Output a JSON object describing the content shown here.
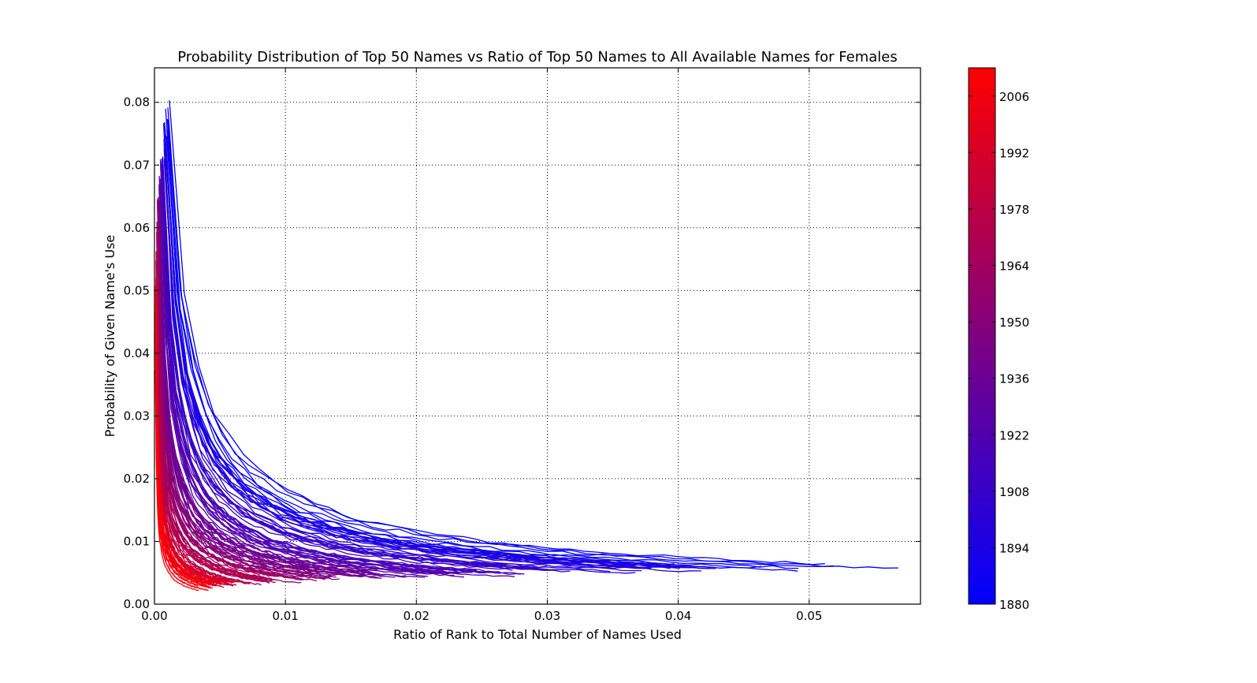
{
  "chart_data": {
    "type": "line",
    "title": "Probability Distribution of Top 50 Names vs Ratio of Top 50 Names to All Available Names for Females",
    "xlabel": "Ratio of Rank to Total Number of Names Used",
    "ylabel": "Probability of Given Name's Use",
    "xlim": [
      0,
      0.0585
    ],
    "ylim": [
      0,
      0.0855
    ],
    "x_ticks": [
      "0.00",
      "0.01",
      "0.02",
      "0.03",
      "0.04",
      "0.05"
    ],
    "y_ticks": [
      "0.00",
      "0.01",
      "0.02",
      "0.03",
      "0.04",
      "0.05",
      "0.06",
      "0.07",
      "0.08"
    ],
    "grid": true,
    "grid_style": "dotted",
    "series_description": {
      "year_start": 1880,
      "year_end": 2013,
      "points_per_series": 50,
      "first_year_max_x": 0.0532,
      "last_year_max_x": 0.0027,
      "first_year_end_y": 0.006,
      "last_year_end_y": 0.0028,
      "peak_y_range": [
        0.032,
        0.078
      ]
    },
    "colorbar": {
      "label_ticks": [
        "1880",
        "1894",
        "1908",
        "1922",
        "1936",
        "1950",
        "1964",
        "1978",
        "1992",
        "2006"
      ],
      "range": [
        1880,
        2013
      ],
      "color_low": "#0000ff",
      "color_high": "#ff0000"
    }
  }
}
